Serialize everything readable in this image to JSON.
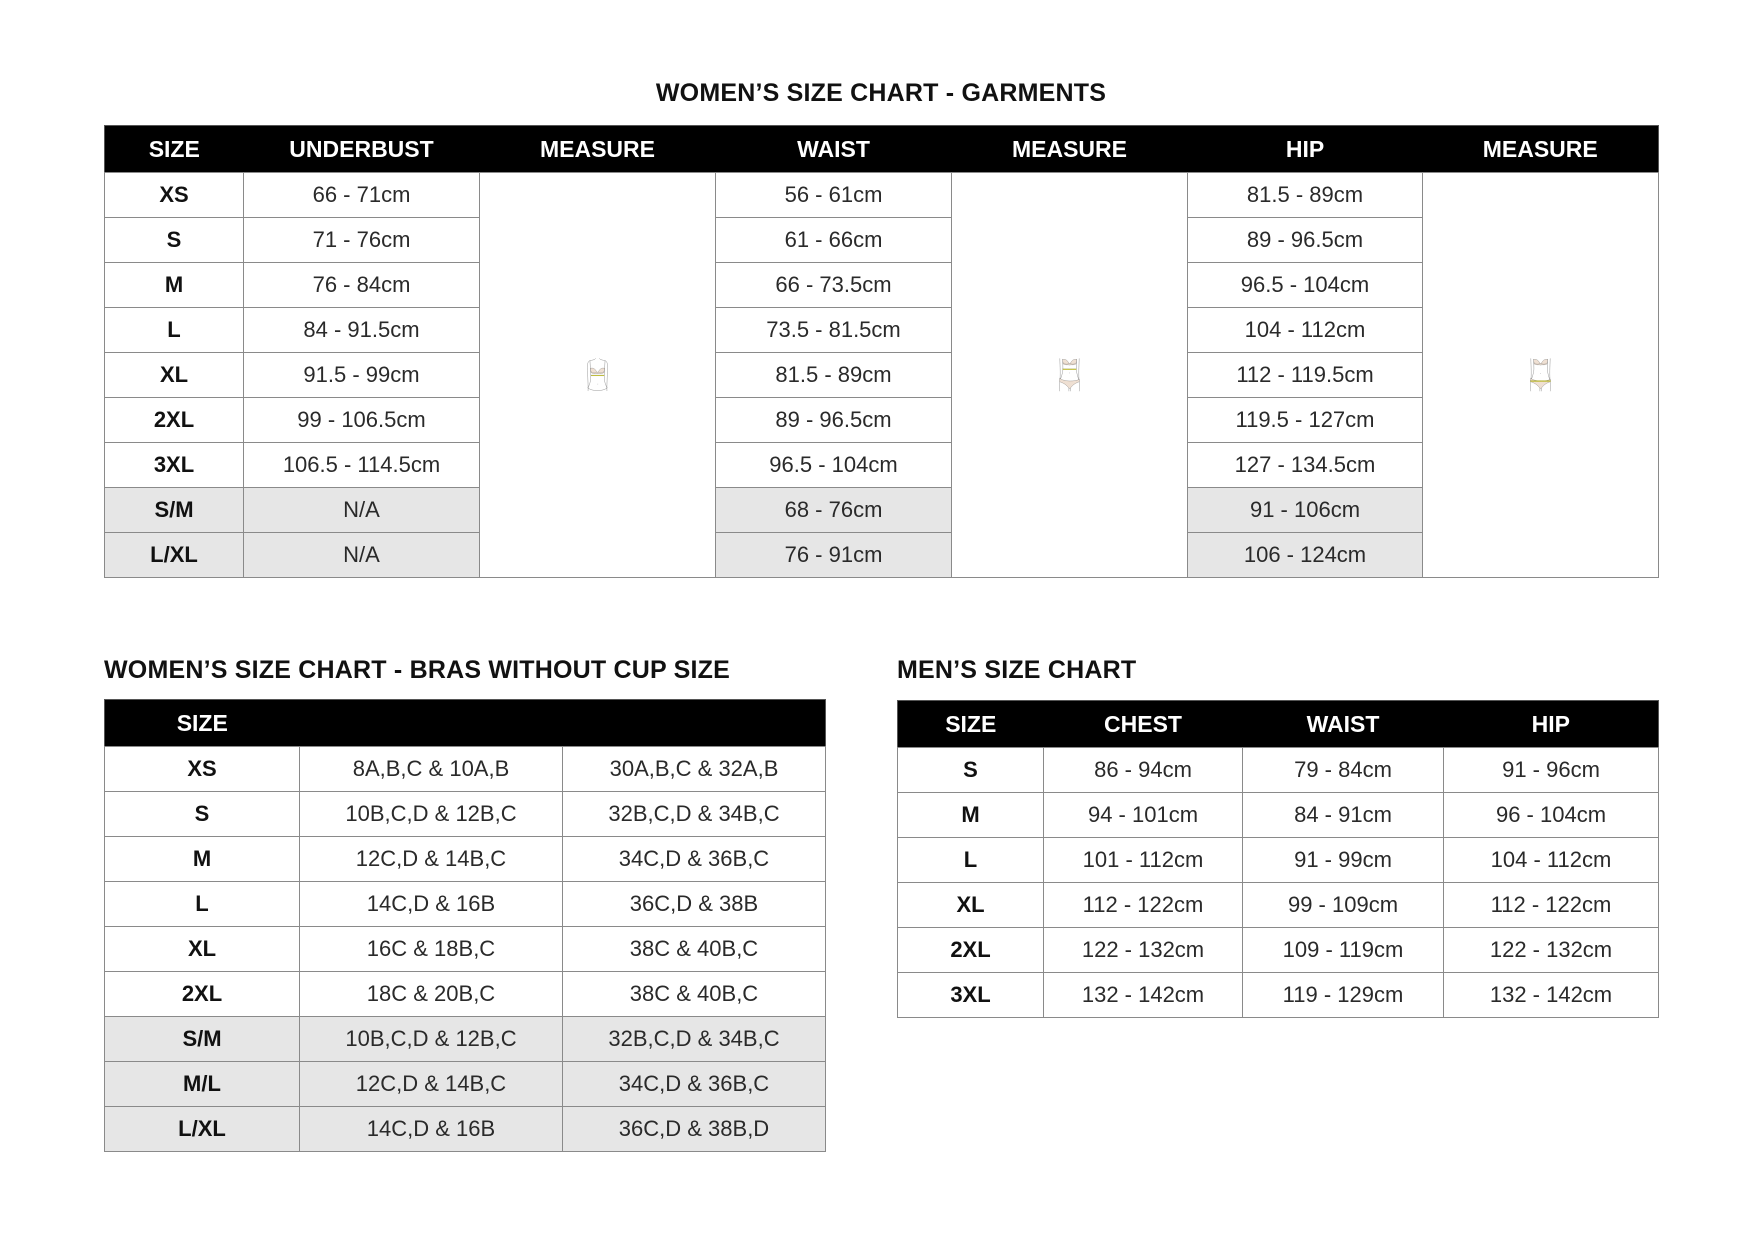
{
  "garments": {
    "title": "WOMEN’S SIZE CHART - GARMENTS",
    "headers": [
      "SIZE",
      "UNDERBUST",
      "MEASURE",
      "WAIST",
      "MEASURE",
      "HIP",
      "MEASURE"
    ],
    "measure_illustrations": [
      "underbust-measure-figure",
      "waist-measure-figure",
      "hip-measure-figure"
    ],
    "rows": [
      {
        "size": "XS",
        "underbust": "66 - 71cm",
        "waist": "56 - 61cm",
        "hip": "81.5 - 89cm",
        "shaded": false
      },
      {
        "size": "S",
        "underbust": "71 - 76cm",
        "waist": "61 - 66cm",
        "hip": "89 - 96.5cm",
        "shaded": false
      },
      {
        "size": "M",
        "underbust": "76 - 84cm",
        "waist": "66 - 73.5cm",
        "hip": "96.5 - 104cm",
        "shaded": false
      },
      {
        "size": "L",
        "underbust": "84 - 91.5cm",
        "waist": "73.5 - 81.5cm",
        "hip": "104 - 112cm",
        "shaded": false
      },
      {
        "size": "XL",
        "underbust": "91.5 - 99cm",
        "waist": "81.5 - 89cm",
        "hip": "112 - 119.5cm",
        "shaded": false
      },
      {
        "size": "2XL",
        "underbust": "99 - 106.5cm",
        "waist": "89 - 96.5cm",
        "hip": "119.5 - 127cm",
        "shaded": false
      },
      {
        "size": "3XL",
        "underbust": "106.5 - 114.5cm",
        "waist": "96.5 - 104cm",
        "hip": "127 - 134.5cm",
        "shaded": false
      },
      {
        "size": "S/M",
        "underbust": "N/A",
        "waist": "68 - 76cm",
        "hip": "91 - 106cm",
        "shaded": true
      },
      {
        "size": "L/XL",
        "underbust": "N/A",
        "waist": "76 - 91cm",
        "hip": "106 - 124cm",
        "shaded": true
      }
    ]
  },
  "bras": {
    "title": "WOMEN’S SIZE CHART - BRAS WITHOUT CUP SIZE",
    "headers": [
      "SIZE",
      "",
      ""
    ],
    "rows": [
      {
        "size": "XS",
        "a": "8A,B,C & 10A,B",
        "b": "30A,B,C & 32A,B",
        "shaded": false
      },
      {
        "size": "S",
        "a": "10B,C,D & 12B,C",
        "b": "32B,C,D & 34B,C",
        "shaded": false
      },
      {
        "size": "M",
        "a": "12C,D & 14B,C",
        "b": "34C,D & 36B,C",
        "shaded": false
      },
      {
        "size": "L",
        "a": "14C,D & 16B",
        "b": "36C,D & 38B",
        "shaded": false
      },
      {
        "size": "XL",
        "a": "16C & 18B,C",
        "b": "38C & 40B,C",
        "shaded": false
      },
      {
        "size": "2XL",
        "a": "18C & 20B,C",
        "b": "38C & 40B,C",
        "shaded": false
      },
      {
        "size": "S/M",
        "a": "10B,C,D & 12B,C",
        "b": "32B,C,D & 34B,C",
        "shaded": true
      },
      {
        "size": "M/L",
        "a": "12C,D & 14B,C",
        "b": "34C,D & 36B,C",
        "shaded": true
      },
      {
        "size": "L/XL",
        "a": "14C,D & 16B",
        "b": "36C,D & 38B,D",
        "shaded": true
      }
    ]
  },
  "mens": {
    "title": "MEN’S SIZE CHART",
    "headers": [
      "SIZE",
      "CHEST",
      "WAIST",
      "HIP"
    ],
    "rows": [
      {
        "size": "S",
        "chest": "86 - 94cm",
        "waist": "79 - 84cm",
        "hip": "91 - 96cm"
      },
      {
        "size": "M",
        "chest": "94 - 101cm",
        "waist": "84 - 91cm",
        "hip": "96 - 104cm"
      },
      {
        "size": "L",
        "chest": "101 - 112cm",
        "waist": "91 - 99cm",
        "hip": "104 - 112cm"
      },
      {
        "size": "XL",
        "chest": "112 - 122cm",
        "waist": "99 - 109cm",
        "hip": "112 - 122cm"
      },
      {
        "size": "2XL",
        "chest": "122 - 132cm",
        "waist": "109 - 119cm",
        "hip": "122 - 132cm"
      },
      {
        "size": "3XL",
        "chest": "132 - 142cm",
        "waist": "119 - 129cm",
        "hip": "132 - 142cm"
      }
    ]
  },
  "colors": {
    "header_bg": "#000000",
    "shaded_row": "#e6e6e6",
    "skin": "#efe0d3",
    "tape": "#e6e23a"
  }
}
